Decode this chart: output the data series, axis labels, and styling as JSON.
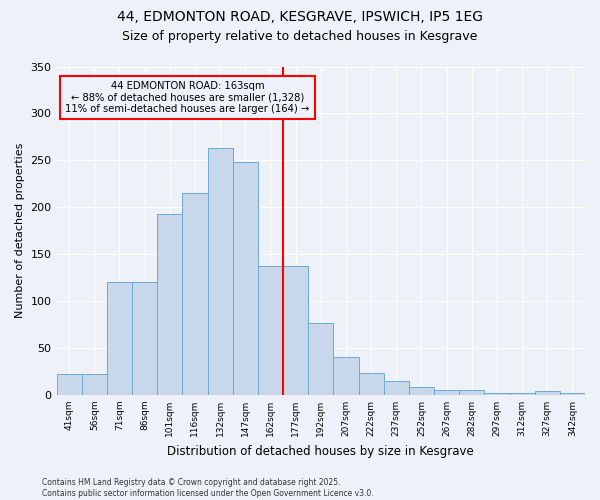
{
  "title1": "44, EDMONTON ROAD, KESGRAVE, IPSWICH, IP5 1EG",
  "title2": "Size of property relative to detached houses in Kesgrave",
  "xlabel": "Distribution of detached houses by size in Kesgrave",
  "ylabel": "Number of detached properties",
  "categories": [
    "41sqm",
    "56sqm",
    "71sqm",
    "86sqm",
    "101sqm",
    "116sqm",
    "132sqm",
    "147sqm",
    "162sqm",
    "177sqm",
    "192sqm",
    "207sqm",
    "222sqm",
    "237sqm",
    "252sqm",
    "267sqm",
    "282sqm",
    "297sqm",
    "312sqm",
    "327sqm",
    "342sqm"
  ],
  "values": [
    22,
    22,
    120,
    120,
    193,
    215,
    263,
    248,
    137,
    137,
    77,
    40,
    23,
    15,
    8,
    5,
    5,
    2,
    2,
    4,
    2
  ],
  "bar_color": "#c8d8ea",
  "bar_edge_color": "#6aaad4",
  "vline_color": "red",
  "annotation_text": "44 EDMONTON ROAD: 163sqm\n← 88% of detached houses are smaller (1,328)\n11% of semi-detached houses are larger (164) →",
  "annotation_box_color": "red",
  "annotation_text_color": "black",
  "ylim": [
    0,
    350
  ],
  "yticks": [
    0,
    50,
    100,
    150,
    200,
    250,
    300,
    350
  ],
  "footer1": "Contains HM Land Registry data © Crown copyright and database right 2025.",
  "footer2": "Contains public sector information licensed under the Open Government Licence v3.0.",
  "bg_color": "#eef2f8",
  "grid_color": "#ffffff",
  "title_fontsize": 10,
  "subtitle_fontsize": 9
}
